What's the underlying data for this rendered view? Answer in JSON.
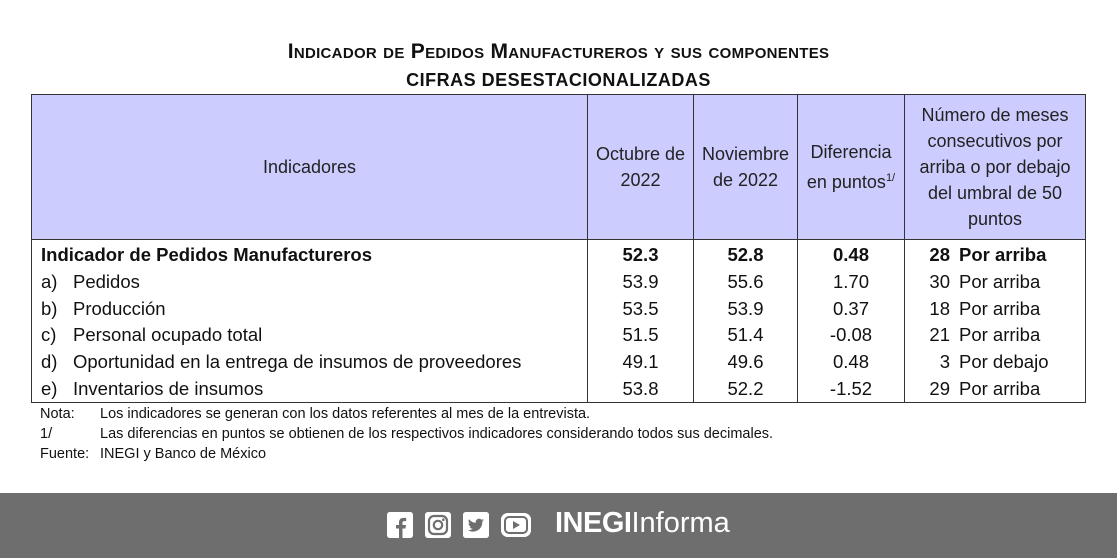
{
  "title": "Indicador de Pedidos Manufactureros y sus componentes",
  "subtitle": "CIFRAS DESESTACIONALIZADAS",
  "table": {
    "headers": {
      "indicadores": "Indicadores",
      "oct": "Octubre de 2022",
      "nov": "Noviembre de 2022",
      "diff": "Diferencia en puntos",
      "diff_sup": "1/",
      "months": "Número de meses consecutivos por arriba o por debajo del umbral de 50 puntos"
    },
    "rows": [
      {
        "prefix": "",
        "name": "Indicador de Pedidos Manufactureros",
        "oct": "52.3",
        "nov": "52.8",
        "diff": "0.48",
        "months": "28",
        "dir": "Por arriba"
      },
      {
        "prefix": "a)",
        "name": "Pedidos",
        "oct": "53.9",
        "nov": "55.6",
        "diff": "1.70",
        "months": "30",
        "dir": "Por arriba"
      },
      {
        "prefix": "b)",
        "name": "Producción",
        "oct": "53.5",
        "nov": "53.9",
        "diff": "0.37",
        "months": "18",
        "dir": "Por arriba"
      },
      {
        "prefix": "c)",
        "name": "Personal ocupado total",
        "oct": "51.5",
        "nov": "51.4",
        "diff": "-0.08",
        "months": "21",
        "dir": "Por arriba"
      },
      {
        "prefix": "d)",
        "name": "Oportunidad en la entrega de insumos de proveedores",
        "oct": "49.1",
        "nov": "49.6",
        "diff": "0.48",
        "months": "3",
        "dir": "Por debajo"
      },
      {
        "prefix": "e)",
        "name": "Inventarios de insumos",
        "oct": "53.8",
        "nov": "52.2",
        "diff": "-1.52",
        "months": "29",
        "dir": "Por arriba"
      }
    ]
  },
  "notes": [
    {
      "key": "Nota:",
      "text": "Los indicadores se generan con los datos referentes al mes de la entrevista."
    },
    {
      "key": "1/",
      "text": "Las diferencias en puntos se obtienen de los respectivos indicadores considerando todos sus decimales."
    },
    {
      "key": "Fuente:",
      "text": "INEGI y Banco de México"
    }
  ],
  "footer": {
    "brand_bold": "INEGI",
    "brand_light": "Informa",
    "icons": [
      "facebook-icon",
      "instagram-icon",
      "twitter-icon",
      "youtube-icon"
    ]
  }
}
